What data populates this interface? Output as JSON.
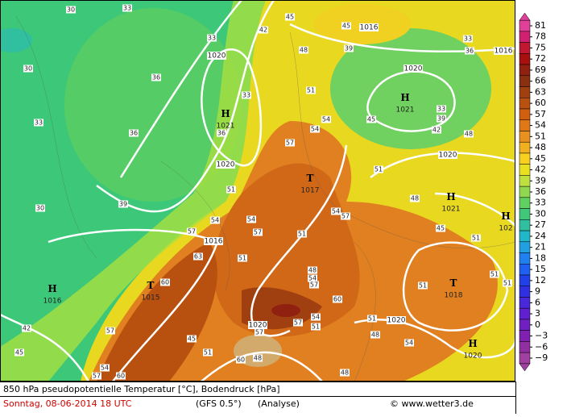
{
  "map": {
    "pressure_centers": [
      {
        "symbol": "H",
        "value": 1021
      },
      {
        "symbol": "T",
        "value": 1017
      },
      {
        "symbol": "H",
        "value": 1021
      },
      {
        "symbol": "H",
        "value": 1021
      },
      {
        "symbol": "H",
        "value": 102
      },
      {
        "symbol": "T",
        "value": 1015
      },
      {
        "symbol": "H",
        "value": 1016
      },
      {
        "symbol": "T",
        "value": 1018
      },
      {
        "symbol": "H",
        "value": 1020
      }
    ],
    "isobar_labels": [
      1016,
      1016,
      1020,
      1020,
      1020,
      1020,
      1016,
      1020,
      1020
    ],
    "temperature_labels": [
      30,
      33,
      30,
      33,
      36,
      36,
      39,
      30,
      33,
      33,
      36,
      42,
      45,
      48,
      51,
      54,
      57,
      51,
      54,
      57,
      63,
      60,
      57,
      45,
      51,
      60,
      48,
      42,
      45,
      57,
      54,
      60,
      57,
      54,
      51,
      51,
      54,
      57,
      48,
      45,
      51,
      51,
      51,
      51,
      48,
      45,
      42,
      39,
      33,
      36,
      33,
      39,
      51,
      57,
      48,
      54,
      60,
      57,
      54,
      51,
      57,
      51,
      48,
      54,
      48,
      45,
      54
    ]
  },
  "colorbar": {
    "ticks": [
      81,
      78,
      75,
      72,
      69,
      66,
      63,
      60,
      57,
      54,
      51,
      48,
      45,
      42,
      39,
      36,
      33,
      30,
      27,
      24,
      21,
      18,
      15,
      12,
      9,
      6,
      3,
      0,
      {
        "value": -3,
        "label": "−3"
      },
      {
        "value": -6,
        "label": "−6"
      },
      {
        "value": -9,
        "label": "−9"
      }
    ],
    "colors": [
      "#e0409a",
      "#d02070",
      "#c01830",
      "#a81010",
      "#902010",
      "#883010",
      "#a04010",
      "#b85010",
      "#d06010",
      "#e07818",
      "#e89020",
      "#f0b020",
      "#f8d020",
      "#e8e020",
      "#c0e040",
      "#90d850",
      "#60d060",
      "#40c878",
      "#30c0a0",
      "#20b8c8",
      "#20a0e0",
      "#2080f0",
      "#2060f0",
      "#2040e8",
      "#3030e0",
      "#4828d8",
      "#6020d0",
      "#7020c0",
      "#8020b0",
      "#9030a0",
      "#a040a0"
    ]
  },
  "footer": {
    "title": "850 hPa pseudopotentielle Temperatur [°C], Bodendruck [hPa]",
    "date": "Sonntag, 08-06-2014  18 UTC",
    "model": "(GFS 0.5°)",
    "run": "(Analyse)",
    "credit": "© www.wetter3.de"
  }
}
